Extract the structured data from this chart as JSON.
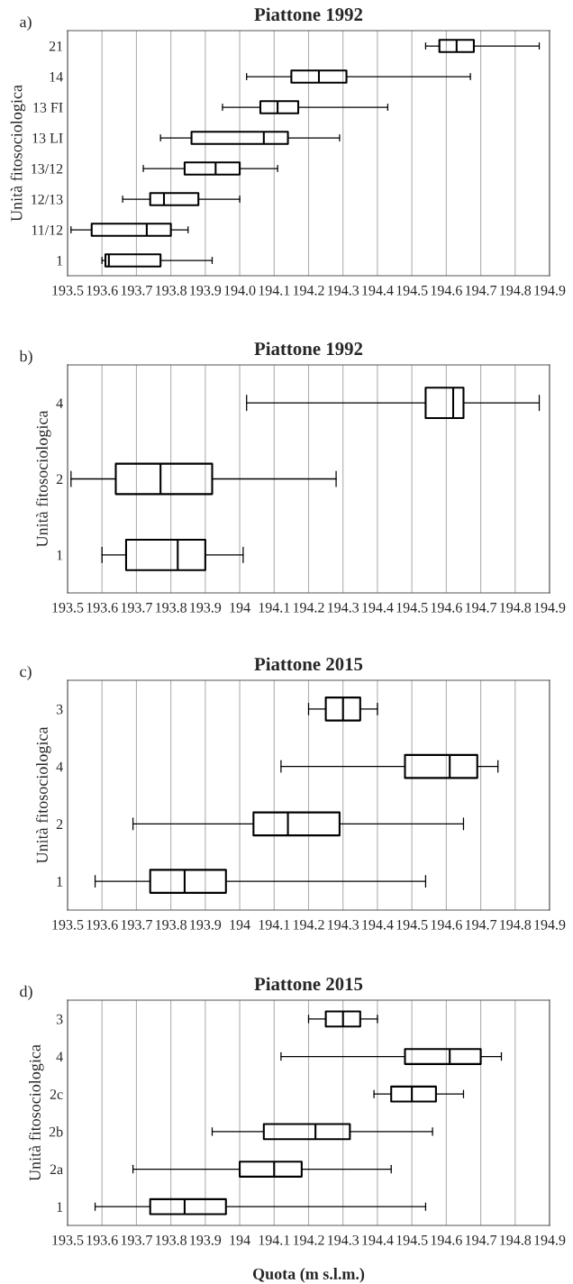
{
  "chart_data": [
    {
      "type": "box",
      "orientation": "horizontal",
      "title": "Piattone 1992",
      "ylabel": "Unità fitosociologica",
      "annotations": [
        "a)"
      ],
      "grid": "x",
      "xlim": [
        193.5,
        194.9
      ],
      "xticks": [
        193.5,
        193.6,
        193.7,
        193.8,
        193.9,
        {
          "value": 194,
          "label": "194.0"
        },
        194.1,
        194.2,
        194.3,
        194.4,
        194.5,
        194.6,
        194.7,
        194.8,
        194.9
      ],
      "categories": [
        "21",
        "14",
        "13 FI",
        "13 LI",
        "13/12",
        "12/13",
        "11/12",
        "1"
      ],
      "boxes": [
        {
          "low": 194.54,
          "q1": 194.58,
          "median": 194.63,
          "q3": 194.68,
          "high": 194.87
        },
        {
          "low": 194.02,
          "q1": 194.15,
          "median": 194.23,
          "q3": 194.31,
          "high": 194.67
        },
        {
          "low": 193.95,
          "q1": 194.06,
          "median": 194.11,
          "q3": 194.17,
          "high": 194.43
        },
        {
          "low": 193.77,
          "q1": 193.86,
          "median": 194.07,
          "q3": 194.14,
          "high": 194.29
        },
        {
          "low": 193.72,
          "q1": 193.84,
          "median": 193.93,
          "q3": 194.0,
          "high": 194.11
        },
        {
          "low": 193.66,
          "q1": 193.74,
          "median": 193.78,
          "q3": 193.88,
          "high": 194.0
        },
        {
          "low": 193.51,
          "q1": 193.57,
          "median": 193.73,
          "q3": 193.8,
          "high": 193.85
        },
        {
          "low": 193.6,
          "q1": 193.61,
          "median": 193.62,
          "q3": 193.77,
          "high": 193.92
        }
      ]
    },
    {
      "type": "box",
      "orientation": "horizontal",
      "title": "Piattone 1992",
      "ylabel": "Unità fitosociologica",
      "annotations": [
        "b)"
      ],
      "grid": "x",
      "xlim": [
        193.5,
        194.9
      ],
      "xticks": [
        193.5,
        193.6,
        193.7,
        193.8,
        193.9,
        194,
        194.1,
        194.2,
        194.3,
        194.4,
        194.5,
        194.6,
        194.7,
        194.8,
        194.9
      ],
      "categories": [
        "4",
        "2",
        "1"
      ],
      "boxes": [
        {
          "low": 194.02,
          "q1": 194.54,
          "median": 194.62,
          "q3": 194.65,
          "high": 194.87
        },
        {
          "low": 193.51,
          "q1": 193.64,
          "median": 193.77,
          "q3": 193.92,
          "high": 194.28
        },
        {
          "low": 193.6,
          "q1": 193.67,
          "median": 193.82,
          "q3": 193.9,
          "high": 194.01
        }
      ]
    },
    {
      "type": "box",
      "orientation": "horizontal",
      "title": "Piattone 2015",
      "ylabel": "Unità fitosociologica",
      "annotations": [
        "c)"
      ],
      "grid": "x",
      "xlim": [
        193.5,
        194.9
      ],
      "xticks": [
        193.5,
        193.6,
        193.7,
        193.8,
        193.9,
        194,
        194.1,
        194.2,
        194.3,
        194.4,
        194.5,
        194.6,
        194.7,
        194.8,
        194.9
      ],
      "categories": [
        "3",
        "4",
        "2",
        "1"
      ],
      "boxes": [
        {
          "low": 194.2,
          "q1": 194.25,
          "median": 194.3,
          "q3": 194.35,
          "high": 194.4
        },
        {
          "low": 194.12,
          "q1": 194.48,
          "median": 194.61,
          "q3": 194.69,
          "high": 194.75
        },
        {
          "low": 193.69,
          "q1": 194.04,
          "median": 194.14,
          "q3": 194.29,
          "high": 194.65
        },
        {
          "low": 193.58,
          "q1": 193.74,
          "median": 193.84,
          "q3": 193.96,
          "high": 194.54
        }
      ]
    },
    {
      "type": "box",
      "orientation": "horizontal",
      "title": "Piattone 2015",
      "ylabel": "Unità fitosociologica",
      "xlabel": "Quota (m s.l.m.)",
      "annotations": [
        "d)"
      ],
      "grid": "x",
      "xlim": [
        193.5,
        194.9
      ],
      "xticks": [
        193.5,
        193.6,
        193.7,
        193.8,
        193.9,
        194,
        194.1,
        194.2,
        194.3,
        194.4,
        194.5,
        194.6,
        194.7,
        194.8,
        194.9
      ],
      "categories": [
        "3",
        "4",
        "2c",
        "2b",
        "2a",
        "1"
      ],
      "boxes": [
        {
          "low": 194.2,
          "q1": 194.25,
          "median": 194.3,
          "q3": 194.35,
          "high": 194.4
        },
        {
          "low": 194.12,
          "q1": 194.48,
          "median": 194.61,
          "q3": 194.7,
          "high": 194.76
        },
        {
          "low": 194.39,
          "q1": 194.44,
          "median": 194.5,
          "q3": 194.57,
          "high": 194.65
        },
        {
          "low": 193.92,
          "q1": 194.07,
          "median": 194.22,
          "q3": 194.32,
          "high": 194.56
        },
        {
          "low": 193.69,
          "q1": 194.0,
          "median": 194.1,
          "q3": 194.18,
          "high": 194.44
        },
        {
          "low": 193.58,
          "q1": 193.74,
          "median": 193.84,
          "q3": 193.96,
          "high": 194.54
        }
      ]
    }
  ]
}
